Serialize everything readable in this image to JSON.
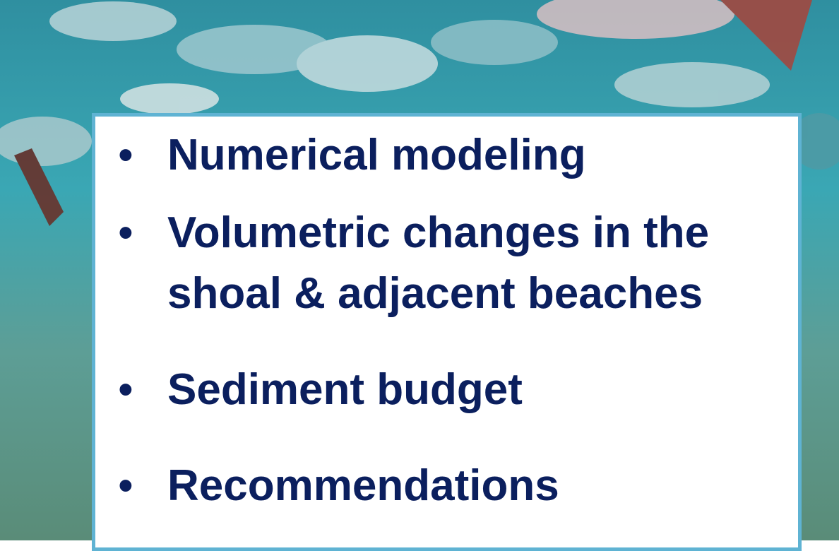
{
  "bullets": [
    "Numerical modeling",
    "Volumetric changes in the shoal & adjacent beaches",
    "Sediment budget",
    "Recommendations"
  ]
}
